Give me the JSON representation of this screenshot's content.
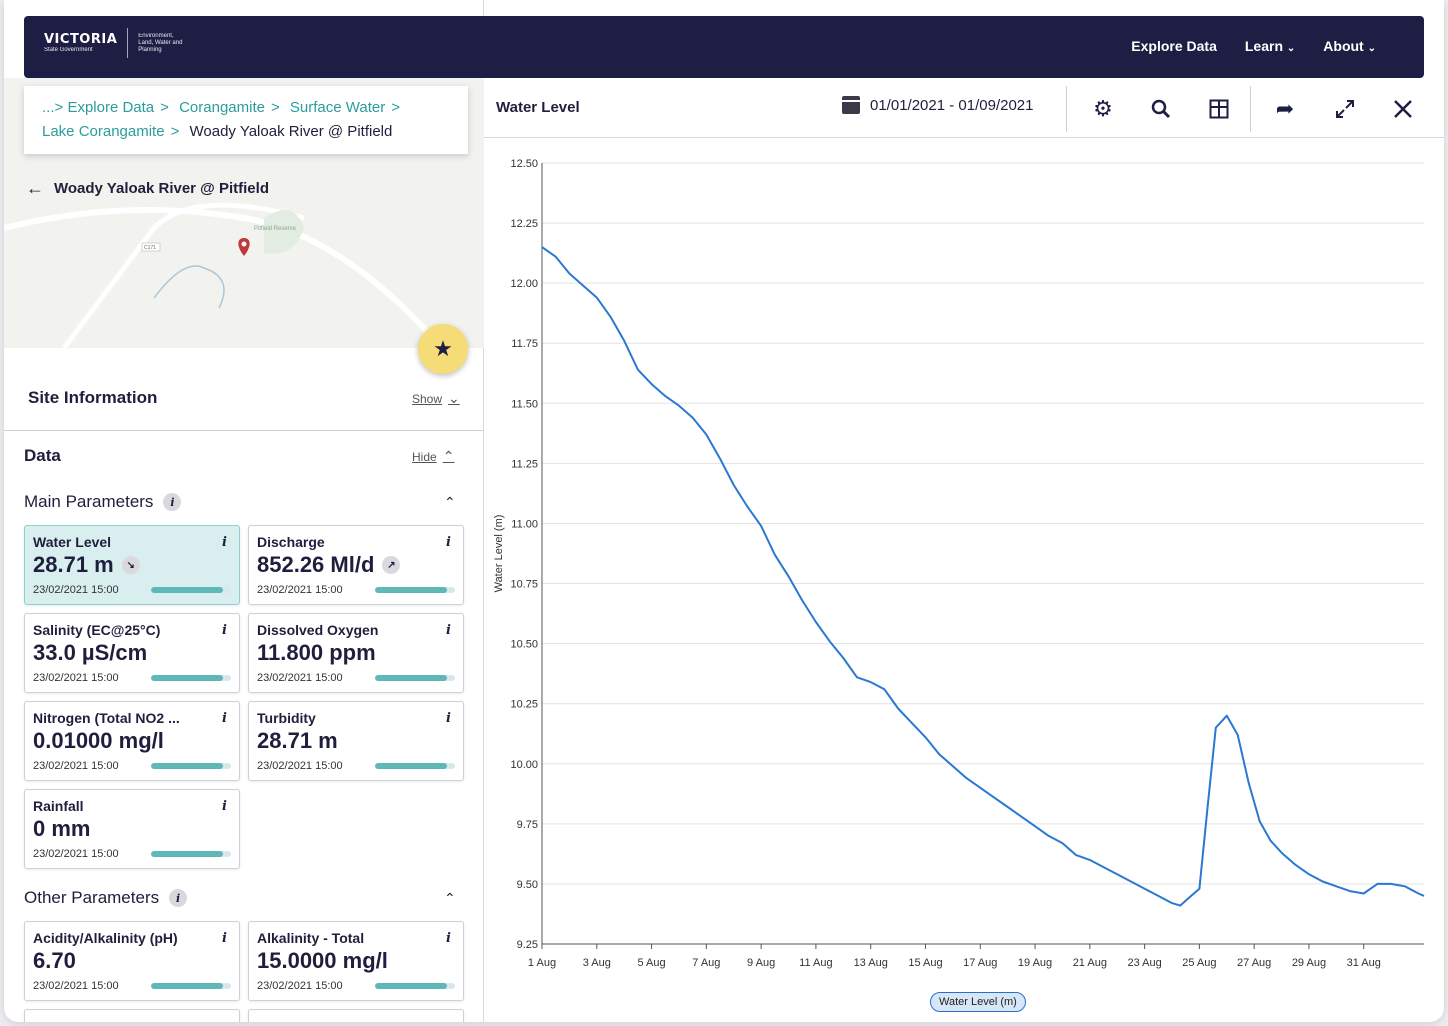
{
  "brand": {
    "name": "VICTORIA",
    "sub": "State Government",
    "dept": "Environment, Land, Water and Planning"
  },
  "nav": {
    "explore": "Explore Data",
    "learn": "Learn",
    "about": "About"
  },
  "breadcrumb": {
    "ellipsis": "...>",
    "items": [
      "Explore Data",
      "Corangamite",
      "Surface Water",
      "Lake Corangamite"
    ],
    "current": "Woady Yaloak River @ Pitfield"
  },
  "site": {
    "title": "Woady Yaloak River @ Pitfield",
    "map_label": "Pitfield Reserve",
    "road_label": "C171"
  },
  "site_info": {
    "title": "Site Information",
    "toggle": "Show"
  },
  "data_section": {
    "title": "Data",
    "toggle": "Hide"
  },
  "main_params": {
    "title": "Main Parameters"
  },
  "other_params": {
    "title": "Other Parameters"
  },
  "cards": [
    {
      "name": "Water Level",
      "value": "28.71 m",
      "time": "23/02/2021 15:00",
      "trend": "down",
      "progress": 0.9
    },
    {
      "name": "Discharge",
      "value": "852.26 Ml/d",
      "time": "23/02/2021 15:00",
      "trend": "up",
      "progress": 0.9
    },
    {
      "name": "Salinity (EC@25°C)",
      "value": "33.0 µS/cm",
      "time": "23/02/2021 15:00",
      "progress": 0.9
    },
    {
      "name": "Dissolved Oxygen",
      "value": "11.800 ppm",
      "time": "23/02/2021 15:00",
      "progress": 0.9
    },
    {
      "name": "Nitrogen (Total NO2 ...",
      "value": "0.01000 mg/l",
      "time": "23/02/2021 15:00",
      "progress": 0.9
    },
    {
      "name": "Turbidity",
      "value": "28.71 m",
      "time": "23/02/2021 15:00",
      "progress": 0.9
    },
    {
      "name": "Rainfall",
      "value": "0 mm",
      "time": "23/02/2021 15:00",
      "progress": 0.9
    },
    {
      "name": "Acidity/Alkalinity (pH)",
      "value": "6.70",
      "time": "23/02/2021 15:00",
      "progress": 0.9
    },
    {
      "name": "Alkalinity - Total",
      "value": "15.0000 mg/l",
      "time": "23/02/2021 15:00",
      "progress": 0.9
    }
  ],
  "chart_panel": {
    "title": "Water Level",
    "date_range": "01/01/2021 - 01/09/2021"
  },
  "chart_data": {
    "type": "line",
    "ylabel": "Water Level (m)",
    "ylim": [
      9.25,
      12.5
    ],
    "yticks": [
      "12.50",
      "12.25",
      "12.00",
      "11.75",
      "11.50",
      "11.25",
      "11.00",
      "10.75",
      "10.50",
      "10.25",
      "10.00",
      "9.75",
      "9.50",
      "9.25"
    ],
    "xticks": [
      "1 Aug",
      "3 Aug",
      "5 Aug",
      "7 Aug",
      "9 Aug",
      "11 Aug",
      "13 Aug",
      "15 Aug",
      "17 Aug",
      "19 Aug",
      "21 Aug",
      "23 Aug",
      "25 Aug",
      "27 Aug",
      "29 Aug",
      "31 Aug"
    ],
    "xlim": [
      0.0,
      32.2
    ],
    "grid": true,
    "series": [
      {
        "name": "Water Level (m)",
        "color": "#2a78d2",
        "x": [
          0,
          0.5,
          1,
          1.5,
          2,
          2.5,
          3,
          3.5,
          4,
          4.5,
          5,
          5.5,
          6,
          6.5,
          7,
          7.5,
          8,
          8.5,
          9,
          9.5,
          10,
          10.5,
          11,
          11.5,
          12,
          12.5,
          13,
          13.5,
          14,
          14.5,
          15,
          15.5,
          16,
          16.5,
          17,
          17.5,
          18,
          18.5,
          19,
          19.5,
          20,
          20.5,
          21,
          21.5,
          22,
          22.5,
          23,
          23.3,
          23.6,
          24,
          24.3,
          24.6,
          25,
          25.4,
          25.8,
          26.2,
          26.6,
          27,
          27.5,
          28,
          28.5,
          29,
          29.5,
          30,
          30.5,
          31,
          31.5,
          32,
          32.2
        ],
        "y": [
          12.15,
          12.11,
          12.04,
          11.99,
          11.94,
          11.86,
          11.76,
          11.64,
          11.58,
          11.53,
          11.49,
          11.44,
          11.37,
          11.27,
          11.16,
          11.07,
          10.99,
          10.87,
          10.78,
          10.68,
          10.59,
          10.51,
          10.44,
          10.36,
          10.34,
          10.31,
          10.23,
          10.17,
          10.11,
          10.04,
          9.99,
          9.94,
          9.9,
          9.86,
          9.82,
          9.78,
          9.74,
          9.7,
          9.67,
          9.62,
          9.6,
          9.57,
          9.54,
          9.51,
          9.48,
          9.45,
          9.42,
          9.41,
          9.44,
          9.48,
          9.82,
          10.15,
          10.2,
          10.12,
          9.92,
          9.76,
          9.68,
          9.63,
          9.58,
          9.54,
          9.51,
          9.49,
          9.47,
          9.46,
          9.5,
          9.5,
          9.49,
          9.46,
          9.45
        ]
      }
    ]
  },
  "legend": {
    "label": "Water Level (m)"
  }
}
